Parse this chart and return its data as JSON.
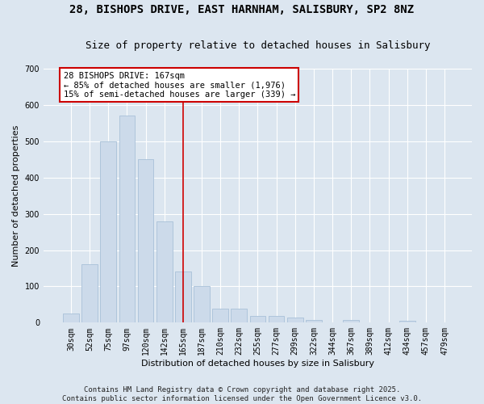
{
  "title_line1": "28, BISHOPS DRIVE, EAST HARNHAM, SALISBURY, SP2 8NZ",
  "title_line2": "Size of property relative to detached houses in Salisbury",
  "xlabel": "Distribution of detached houses by size in Salisbury",
  "ylabel": "Number of detached properties",
  "bar_color": "#ccdaea",
  "bar_edge_color": "#a8c0d8",
  "categories": [
    "30sqm",
    "52sqm",
    "75sqm",
    "97sqm",
    "120sqm",
    "142sqm",
    "165sqm",
    "187sqm",
    "210sqm",
    "232sqm",
    "255sqm",
    "277sqm",
    "299sqm",
    "322sqm",
    "344sqm",
    "367sqm",
    "389sqm",
    "412sqm",
    "434sqm",
    "457sqm",
    "479sqm"
  ],
  "values": [
    25,
    160,
    500,
    570,
    450,
    280,
    140,
    100,
    38,
    38,
    18,
    18,
    13,
    8,
    0,
    8,
    0,
    0,
    5,
    0,
    0
  ],
  "vline_index": 6,
  "vline_color": "#cc0000",
  "ann_line1": "28 BISHOPS DRIVE: 167sqm",
  "ann_line2": "← 85% of detached houses are smaller (1,976)",
  "ann_line3": "15% of semi-detached houses are larger (339) →",
  "ann_box_edge_color": "#cc0000",
  "footer_line1": "Contains HM Land Registry data © Crown copyright and database right 2025.",
  "footer_line2": "Contains public sector information licensed under the Open Government Licence v3.0.",
  "bg_color": "#dce6f0",
  "ylim_max": 700,
  "yticks": [
    0,
    100,
    200,
    300,
    400,
    500,
    600,
    700
  ],
  "title_fontsize": 10,
  "subtitle_fontsize": 9,
  "ylabel_fontsize": 8,
  "xlabel_fontsize": 8,
  "tick_fontsize": 7,
  "ann_fontsize": 7.5,
  "footer_fontsize": 6.5
}
